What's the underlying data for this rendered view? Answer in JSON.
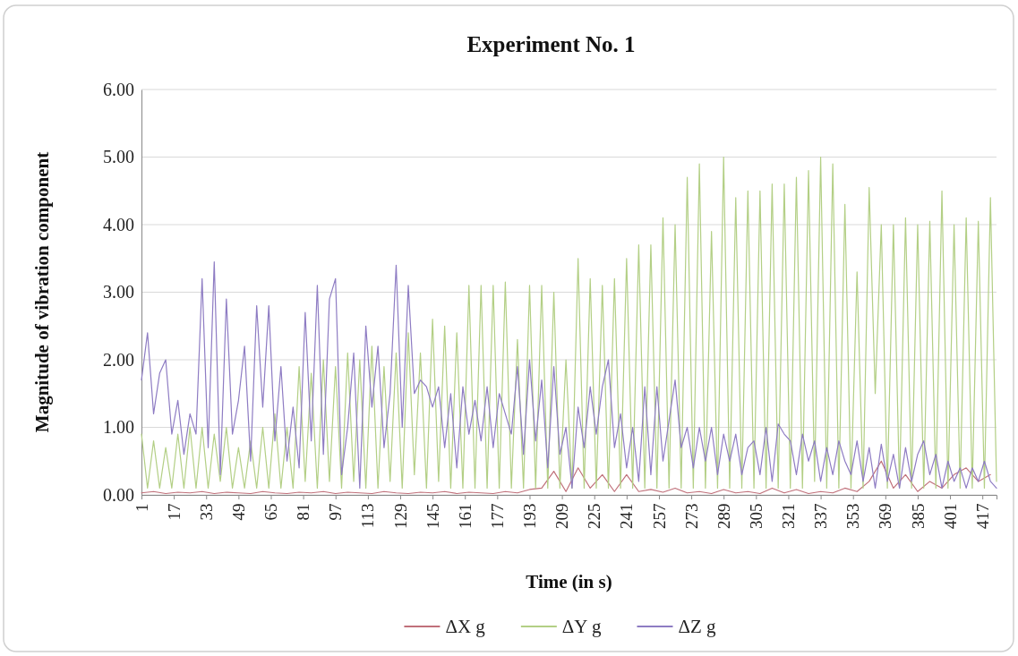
{
  "chart_data": {
    "type": "line",
    "title": "Experiment  No. 1",
    "xlabel": "Time (in s)",
    "ylabel": "Magnitude of vibration component",
    "xlim": [
      1,
      424
    ],
    "xticks": [
      1,
      17,
      33,
      49,
      65,
      81,
      97,
      113,
      129,
      145,
      161,
      177,
      193,
      209,
      225,
      241,
      257,
      273,
      289,
      305,
      321,
      337,
      353,
      369,
      385,
      401,
      417
    ],
    "ylim": [
      0,
      6
    ],
    "yticks": [
      {
        "value": 0,
        "label": "0.00"
      },
      {
        "value": 1,
        "label": "1.00"
      },
      {
        "value": 2,
        "label": "2.00"
      },
      {
        "value": 3,
        "label": "3.00"
      },
      {
        "value": 4,
        "label": "4.00"
      },
      {
        "value": 5,
        "label": "5.00"
      },
      {
        "value": 6,
        "label": "6.00"
      }
    ],
    "grid": "y",
    "legend": "bottom",
    "marker": "none",
    "line_style": "solid",
    "series": [
      {
        "name": "ΔX g",
        "color": "#c0707a",
        "x": [
          1,
          7,
          13,
          19,
          25,
          31,
          37,
          43,
          49,
          55,
          61,
          67,
          73,
          79,
          85,
          91,
          97,
          103,
          109,
          115,
          121,
          127,
          133,
          139,
          145,
          151,
          157,
          163,
          169,
          175,
          181,
          187,
          193,
          199,
          205,
          211,
          217,
          223,
          229,
          235,
          241,
          247,
          253,
          259,
          265,
          271,
          277,
          283,
          289,
          295,
          301,
          307,
          313,
          319,
          325,
          331,
          337,
          343,
          349,
          355,
          361,
          367,
          373,
          379,
          385,
          391,
          397,
          403,
          409,
          415,
          421
        ],
        "values": [
          0.03,
          0.05,
          0.02,
          0.04,
          0.03,
          0.05,
          0.02,
          0.04,
          0.03,
          0.02,
          0.05,
          0.03,
          0.02,
          0.04,
          0.03,
          0.05,
          0.02,
          0.04,
          0.03,
          0.02,
          0.05,
          0.03,
          0.02,
          0.04,
          0.03,
          0.05,
          0.02,
          0.04,
          0.03,
          0.02,
          0.05,
          0.03,
          0.08,
          0.1,
          0.35,
          0.05,
          0.4,
          0.1,
          0.3,
          0.05,
          0.3,
          0.05,
          0.08,
          0.04,
          0.1,
          0.03,
          0.05,
          0.02,
          0.08,
          0.03,
          0.05,
          0.02,
          0.1,
          0.03,
          0.08,
          0.02,
          0.05,
          0.03,
          0.1,
          0.05,
          0.2,
          0.5,
          0.1,
          0.3,
          0.05,
          0.2,
          0.1,
          0.3,
          0.4,
          0.2,
          0.3
        ]
      },
      {
        "name": "ΔY g",
        "color": "#b3cf85",
        "x": [
          1,
          4,
          7,
          10,
          13,
          16,
          19,
          22,
          25,
          28,
          31,
          34,
          37,
          40,
          43,
          46,
          49,
          52,
          55,
          58,
          61,
          64,
          67,
          70,
          73,
          76,
          79,
          82,
          85,
          88,
          91,
          94,
          97,
          100,
          103,
          106,
          109,
          112,
          115,
          118,
          121,
          124,
          127,
          130,
          133,
          136,
          139,
          142,
          145,
          148,
          151,
          154,
          157,
          160,
          163,
          166,
          169,
          172,
          175,
          178,
          181,
          184,
          187,
          190,
          193,
          196,
          199,
          202,
          205,
          208,
          211,
          214,
          217,
          220,
          223,
          226,
          229,
          232,
          235,
          238,
          241,
          244,
          247,
          250,
          253,
          256,
          259,
          262,
          265,
          268,
          271,
          274,
          277,
          280,
          283,
          286,
          289,
          292,
          295,
          298,
          301,
          304,
          307,
          310,
          313,
          316,
          319,
          322,
          325,
          328,
          331,
          334,
          337,
          340,
          343,
          346,
          349,
          352,
          355,
          358,
          361,
          364,
          367,
          370,
          373,
          376,
          379,
          382,
          385,
          388,
          391,
          394,
          397,
          400,
          403,
          406,
          409,
          412,
          415,
          418,
          421,
          424
        ],
        "values": [
          0.9,
          0.1,
          0.8,
          0.1,
          0.7,
          0.1,
          0.9,
          0.1,
          1.0,
          0.1,
          1.0,
          0.1,
          0.9,
          0.2,
          1.0,
          0.1,
          0.7,
          0.1,
          0.8,
          0.1,
          1.0,
          0.1,
          1.2,
          0.1,
          1.0,
          0.1,
          1.9,
          0.2,
          1.8,
          0.1,
          2.0,
          0.2,
          1.9,
          0.1,
          2.1,
          0.2,
          2.0,
          0.1,
          2.2,
          0.1,
          1.9,
          0.2,
          2.1,
          0.1,
          2.4,
          0.3,
          2.1,
          0.1,
          2.6,
          0.2,
          2.5,
          0.1,
          2.4,
          0.1,
          3.1,
          0.1,
          3.1,
          0.1,
          3.1,
          0.1,
          3.15,
          0.1,
          2.3,
          0.1,
          3.1,
          0.1,
          3.1,
          0.1,
          3.0,
          0.1,
          2.0,
          0.1,
          3.5,
          0.1,
          3.2,
          0.1,
          3.1,
          0.1,
          3.2,
          0.1,
          3.5,
          0.1,
          3.7,
          0.1,
          3.7,
          0.1,
          4.1,
          0.1,
          4.0,
          0.1,
          4.7,
          0.1,
          4.9,
          0.1,
          3.9,
          0.1,
          5.0,
          0.1,
          4.4,
          0.1,
          4.5,
          0.1,
          4.5,
          0.1,
          4.6,
          0.1,
          4.6,
          0.1,
          4.7,
          0.1,
          4.8,
          0.2,
          5.0,
          0.1,
          4.9,
          0.1,
          4.3,
          0.1,
          3.3,
          0.1,
          4.55,
          1.5,
          4.0,
          0.1,
          4.0,
          0.1,
          4.1,
          0.1,
          4.0,
          0.1,
          4.05,
          0.1,
          4.5,
          0.1,
          4.0,
          0.1,
          4.1,
          0.1,
          4.05,
          0.1,
          4.4,
          0.2
        ]
      },
      {
        "name": "ΔZ g",
        "color": "#8e7cc3",
        "x": [
          1,
          4,
          7,
          10,
          13,
          16,
          19,
          22,
          25,
          28,
          31,
          34,
          37,
          40,
          43,
          46,
          49,
          52,
          55,
          58,
          61,
          64,
          67,
          70,
          73,
          76,
          79,
          82,
          85,
          88,
          91,
          94,
          97,
          100,
          103,
          106,
          109,
          112,
          115,
          118,
          121,
          124,
          127,
          130,
          133,
          136,
          139,
          142,
          145,
          148,
          151,
          154,
          157,
          160,
          163,
          166,
          169,
          172,
          175,
          178,
          181,
          184,
          187,
          190,
          193,
          196,
          199,
          202,
          205,
          208,
          211,
          214,
          217,
          220,
          223,
          226,
          229,
          232,
          235,
          238,
          241,
          244,
          247,
          250,
          253,
          256,
          259,
          262,
          265,
          268,
          271,
          274,
          277,
          280,
          283,
          286,
          289,
          292,
          295,
          298,
          301,
          304,
          307,
          310,
          313,
          316,
          319,
          322,
          325,
          328,
          331,
          334,
          337,
          340,
          343,
          346,
          349,
          352,
          355,
          358,
          361,
          364,
          367,
          370,
          373,
          376,
          379,
          382,
          385,
          388,
          391,
          394,
          397,
          400,
          403,
          406,
          409,
          412,
          415,
          418,
          421,
          424
        ],
        "values": [
          1.7,
          2.4,
          1.2,
          1.8,
          2.0,
          0.9,
          1.4,
          0.6,
          1.2,
          0.9,
          3.2,
          0.7,
          3.45,
          0.3,
          2.9,
          0.9,
          1.4,
          2.2,
          0.5,
          2.8,
          1.3,
          2.8,
          0.8,
          1.9,
          0.5,
          1.3,
          0.4,
          2.7,
          0.8,
          3.1,
          0.6,
          2.9,
          3.2,
          0.3,
          1.0,
          2.1,
          0.1,
          2.5,
          1.3,
          2.2,
          0.7,
          1.5,
          3.4,
          1.0,
          3.1,
          1.5,
          1.7,
          1.6,
          1.3,
          1.6,
          0.7,
          1.5,
          0.4,
          1.6,
          0.9,
          1.4,
          0.8,
          1.6,
          0.7,
          1.5,
          1.2,
          0.9,
          1.9,
          0.6,
          2.0,
          0.8,
          1.7,
          0.4,
          1.9,
          0.6,
          1.0,
          0.1,
          1.3,
          0.7,
          1.6,
          0.9,
          1.6,
          2.0,
          0.7,
          1.2,
          0.4,
          1.0,
          0.2,
          1.6,
          0.3,
          1.6,
          0.5,
          1.1,
          1.7,
          0.7,
          1.0,
          0.4,
          1.0,
          0.5,
          1.0,
          0.3,
          0.9,
          0.5,
          0.9,
          0.3,
          0.7,
          0.8,
          0.3,
          1.0,
          0.2,
          1.05,
          0.9,
          0.8,
          0.3,
          0.9,
          0.5,
          0.8,
          0.2,
          0.7,
          0.3,
          0.8,
          0.5,
          0.3,
          0.8,
          0.2,
          0.7,
          0.1,
          0.75,
          0.2,
          0.6,
          0.1,
          0.7,
          0.2,
          0.6,
          0.8,
          0.3,
          0.6,
          0.1,
          0.5,
          0.2,
          0.4,
          0.1,
          0.4,
          0.2,
          0.5,
          0.2,
          0.1
        ]
      }
    ]
  }
}
